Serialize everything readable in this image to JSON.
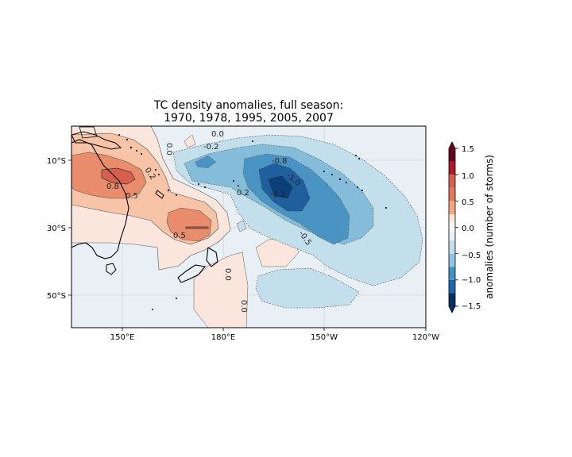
{
  "map": {
    "title_lines": [
      "TC density anomalies, full season:",
      "1970, 1978, 1995, 2005, 2007"
    ],
    "x_ticks": [
      "150°E",
      "180°E",
      "150°W",
      "120°W"
    ],
    "y_ticks": [
      "10°S",
      "30°S",
      "50°S"
    ],
    "contour_labels": [
      {
        "text": "0.0",
        "near": "top-center"
      },
      {
        "text": "0.2",
        "near": "center-north"
      },
      {
        "text": "-0.2",
        "near": "center-north"
      },
      {
        "text": "0.2",
        "near": "west"
      },
      {
        "text": "0.8",
        "near": "west"
      },
      {
        "text": "0.5",
        "near": "west"
      },
      {
        "text": "-0.8",
        "near": "center-east"
      },
      {
        "text": "-1.0",
        "near": "center-east"
      },
      {
        "text": "-1.2",
        "near": "center-east"
      },
      {
        "text": "-0.5",
        "near": "east"
      },
      {
        "text": "0.5",
        "near": "center-south"
      },
      {
        "text": "0.0",
        "near": "south"
      },
      {
        "text": "0.0",
        "near": "south"
      },
      {
        "text": "0.0",
        "near": "top-left"
      }
    ]
  },
  "colorbar": {
    "label": "anomalies (number of storms)",
    "tick_labels": [
      "1.5",
      "1.0",
      "0.5",
      "0.0",
      "−0.5",
      "−1.0",
      "−1.5"
    ],
    "levels": [
      -1.5,
      -1.25,
      -1.0,
      -0.75,
      -0.5,
      -0.25,
      -0.1,
      0.1,
      0.25,
      0.5,
      0.75,
      1.0,
      1.25,
      1.5
    ],
    "colors": [
      "#053061",
      "#2166ac",
      "#4393c3",
      "#92c5de",
      "#c2dceb",
      "#e6eff5",
      "#f7f7f7",
      "#fbe3d5",
      "#f4a582",
      "#e0785f",
      "#d6604d",
      "#b2182b",
      "#67001f"
    ],
    "over_color": "#67001f",
    "under_color": "#053061"
  },
  "palette": {
    "ocean": "#e8f0f6",
    "neg_weak": "#c3dfec",
    "neg_mid": "#85bcd9",
    "neg_strong": "#4a94c4",
    "neg_max": "#1f5f9e",
    "pos_weak": "#fbe6dd",
    "pos_mid": "#f7c4a8",
    "pos_strong": "#e98c6c",
    "pos_max": "#d6604d"
  }
}
